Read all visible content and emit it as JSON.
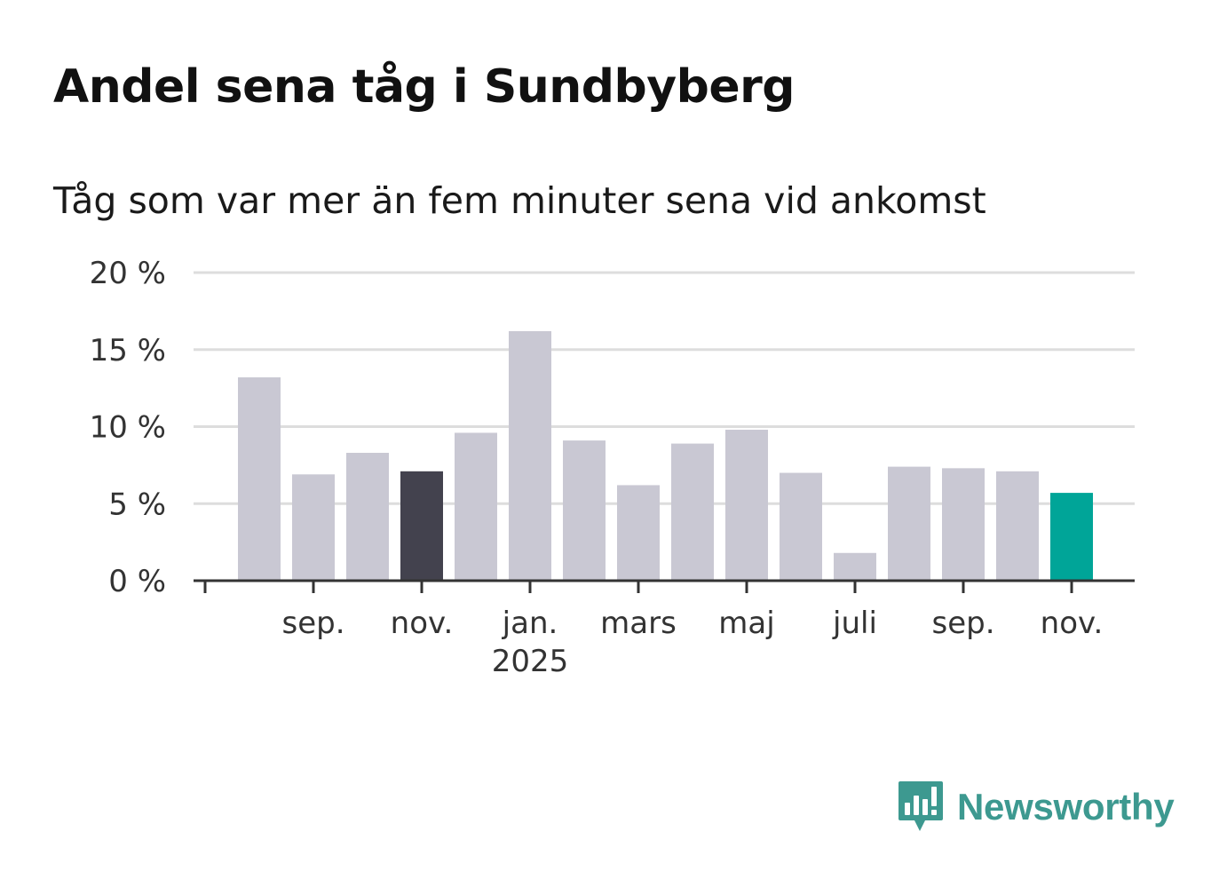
{
  "header": {
    "title": "Andel sena tåg i Sundbyberg",
    "subtitle": "Tåg som var mer än fem minuter sena vid ankomst"
  },
  "chart_data": {
    "type": "bar",
    "title": "Andel sena tåg i Sundbyberg",
    "subtitle": "Tåg som var mer än fem minuter sena vid ankomst",
    "xlabel": "",
    "ylabel": "",
    "ylim": [
      0,
      20
    ],
    "yticks": [
      0,
      5,
      10,
      15,
      20
    ],
    "ytick_labels": [
      "0 %",
      "5 %",
      "10 %",
      "15 %",
      "20 %"
    ],
    "grid": true,
    "categories": [
      "2024-07",
      "2024-08",
      "2024-09",
      "2024-10",
      "2024-11",
      "2024-12",
      "2025-01",
      "2025-02",
      "2025-03",
      "2025-04",
      "2025-05",
      "2025-06",
      "2025-07",
      "2025-08",
      "2025-09",
      "2025-10",
      "2025-11"
    ],
    "values": [
      null,
      13.2,
      6.9,
      8.3,
      7.1,
      9.6,
      16.2,
      9.1,
      6.2,
      8.9,
      9.8,
      7.0,
      1.8,
      7.4,
      7.3,
      7.1,
      5.7
    ],
    "highlight": {
      "2024-11": "comparison",
      "2025-11": "current"
    },
    "xtick_labels": [
      {
        "category": "2024-07",
        "label": "",
        "sublabel": ""
      },
      {
        "category": "2024-09",
        "label": "sep.",
        "sublabel": ""
      },
      {
        "category": "2024-11",
        "label": "nov.",
        "sublabel": ""
      },
      {
        "category": "2025-01",
        "label": "jan.",
        "sublabel": "2025"
      },
      {
        "category": "2025-03",
        "label": "mars",
        "sublabel": ""
      },
      {
        "category": "2025-05",
        "label": "maj",
        "sublabel": ""
      },
      {
        "category": "2025-07",
        "label": "juli",
        "sublabel": ""
      },
      {
        "category": "2025-09",
        "label": "sep.",
        "sublabel": ""
      },
      {
        "category": "2025-11",
        "label": "nov.",
        "sublabel": ""
      }
    ]
  },
  "colors": {
    "bar_default": "#c9c8d3",
    "bar_comparison": "#43424e",
    "bar_current": "#00a598",
    "grid": "#dddddd",
    "axis": "#333333",
    "logo": "#3d9990"
  },
  "brand": {
    "name": "Newsworthy",
    "icon": "newsworthy-logo-icon"
  }
}
